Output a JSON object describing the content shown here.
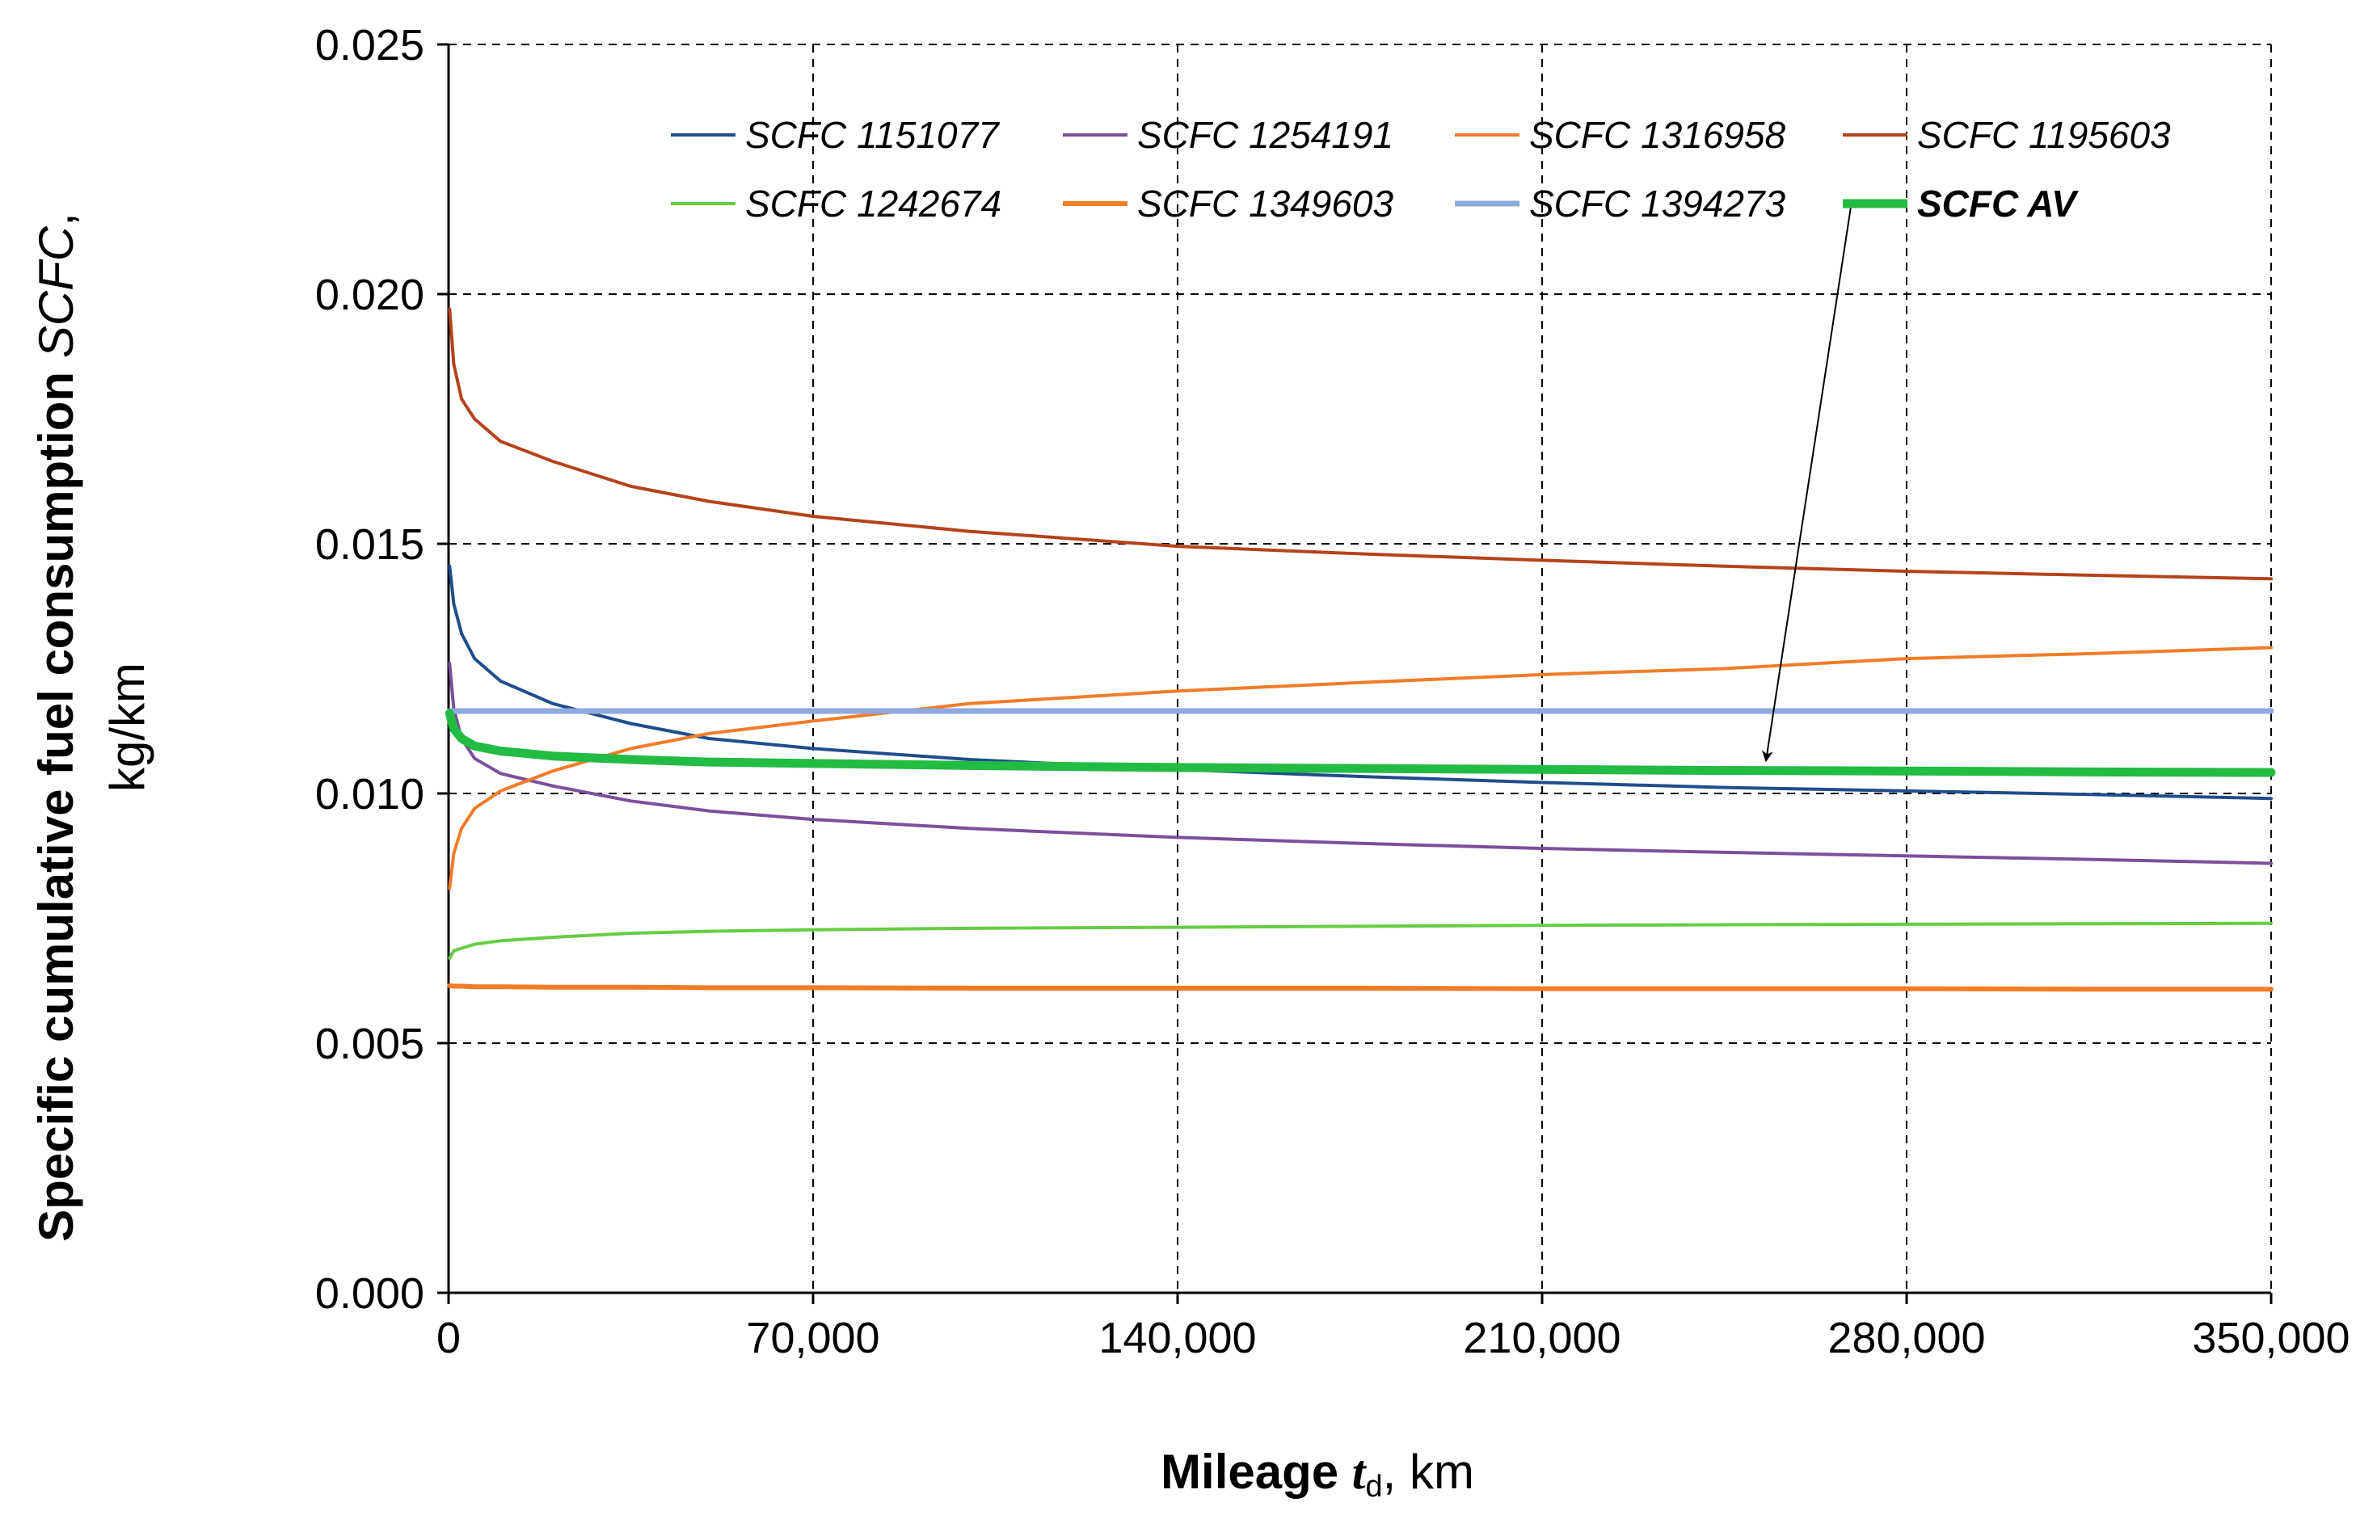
{
  "chart_data": {
    "type": "line",
    "title": "",
    "xlabel": {
      "main": "Mileage ",
      "var": "t",
      "sub": "d",
      "unit": ", km"
    },
    "ylabel": {
      "line1_bold": "Specific cumulative fuel consumption ",
      "line1_italic": "SCFC",
      "line1_end": ",",
      "line2": "kg/km"
    },
    "xlim": [
      0,
      350000
    ],
    "ylim": [
      0,
      0.025
    ],
    "x_ticks": [
      0,
      70000,
      140000,
      210000,
      280000,
      350000
    ],
    "x_tick_labels": [
      "0",
      "70,000",
      "140,000",
      "210,000",
      "280,000",
      "350,000"
    ],
    "y_ticks": [
      0,
      0.005,
      0.01,
      0.015,
      0.02,
      0.025
    ],
    "y_tick_labels": [
      "0.000",
      "0.005",
      "0.010",
      "0.015",
      "0.020",
      "0.025"
    ],
    "grid": true,
    "legend_position": "top",
    "annotation": {
      "from_series": "SCFC AV",
      "points_to": [
        253000,
        0.0104
      ]
    },
    "x": [
      200,
      1000,
      2500,
      5000,
      10000,
      20000,
      35000,
      50000,
      70000,
      100000,
      140000,
      175000,
      210000,
      245000,
      280000,
      315000,
      350000
    ],
    "series": [
      {
        "name": "SCFC 1151077",
        "color": "#1F4E8C",
        "width": 4,
        "bold": false,
        "values": [
          0.01455,
          0.0138,
          0.0132,
          0.0127,
          0.01225,
          0.0118,
          0.0114,
          0.0111,
          0.0109,
          0.01068,
          0.01048,
          0.01034,
          0.01022,
          0.01012,
          0.01005,
          0.00998,
          0.0099
        ]
      },
      {
        "name": "SCFC 1254191",
        "color": "#7A509C",
        "width": 4,
        "bold": false,
        "values": [
          0.0126,
          0.0117,
          0.0111,
          0.0107,
          0.0104,
          0.01015,
          0.00985,
          0.00965,
          0.00948,
          0.0093,
          0.00912,
          0.009,
          0.0089,
          0.00882,
          0.00875,
          0.00868,
          0.0086
        ]
      },
      {
        "name": "SCFC 1316958",
        "color": "#F27C27",
        "width": 4,
        "bold": false,
        "values": [
          0.0081,
          0.0088,
          0.0093,
          0.0097,
          0.01005,
          0.01045,
          0.0109,
          0.0112,
          0.01145,
          0.0118,
          0.01205,
          0.01222,
          0.01238,
          0.0125,
          0.0127,
          0.0128,
          0.01292
        ]
      },
      {
        "name": "SCFC 1195603",
        "color": "#B5431B",
        "width": 4,
        "bold": false,
        "values": [
          0.0197,
          0.0186,
          0.0179,
          0.0175,
          0.01705,
          0.01665,
          0.01615,
          0.01585,
          0.01555,
          0.01525,
          0.01495,
          0.0148,
          0.01467,
          0.01455,
          0.01445,
          0.01437,
          0.0143
        ]
      },
      {
        "name": "SCFC 1242674",
        "color": "#66CC44",
        "width": 4,
        "bold": false,
        "values": [
          0.0067,
          0.00685,
          0.0069,
          0.00698,
          0.00705,
          0.00712,
          0.0072,
          0.00724,
          0.00727,
          0.0073,
          0.00732,
          0.00734,
          0.00736,
          0.00737,
          0.00738,
          0.00739,
          0.0074
        ]
      },
      {
        "name": "SCFC 1349603",
        "color": "#F27C27",
        "width": 6,
        "bold": false,
        "values": [
          0.00615,
          0.00614,
          0.00614,
          0.00613,
          0.00613,
          0.00612,
          0.00612,
          0.00611,
          0.00611,
          0.0061,
          0.0061,
          0.0061,
          0.00609,
          0.00609,
          0.00609,
          0.00608,
          0.00608
        ]
      },
      {
        "name": "SCFC 1394273",
        "color": "#8FAADC",
        "width": 7,
        "bold": false,
        "values": [
          0.01165,
          0.01165,
          0.01165,
          0.01165,
          0.01165,
          0.01165,
          0.01165,
          0.01165,
          0.01165,
          0.01165,
          0.01165,
          0.01165,
          0.01165,
          0.01165,
          0.01165,
          0.01165,
          0.01165
        ]
      },
      {
        "name": "SCFC AV",
        "color": "#22BB44",
        "width": 11,
        "bold": true,
        "values": [
          0.0116,
          0.0113,
          0.0111,
          0.01095,
          0.01085,
          0.01075,
          0.01068,
          0.01063,
          0.0106,
          0.01056,
          0.01052,
          0.0105,
          0.01048,
          0.01046,
          0.01045,
          0.01043,
          0.01042
        ]
      }
    ]
  }
}
